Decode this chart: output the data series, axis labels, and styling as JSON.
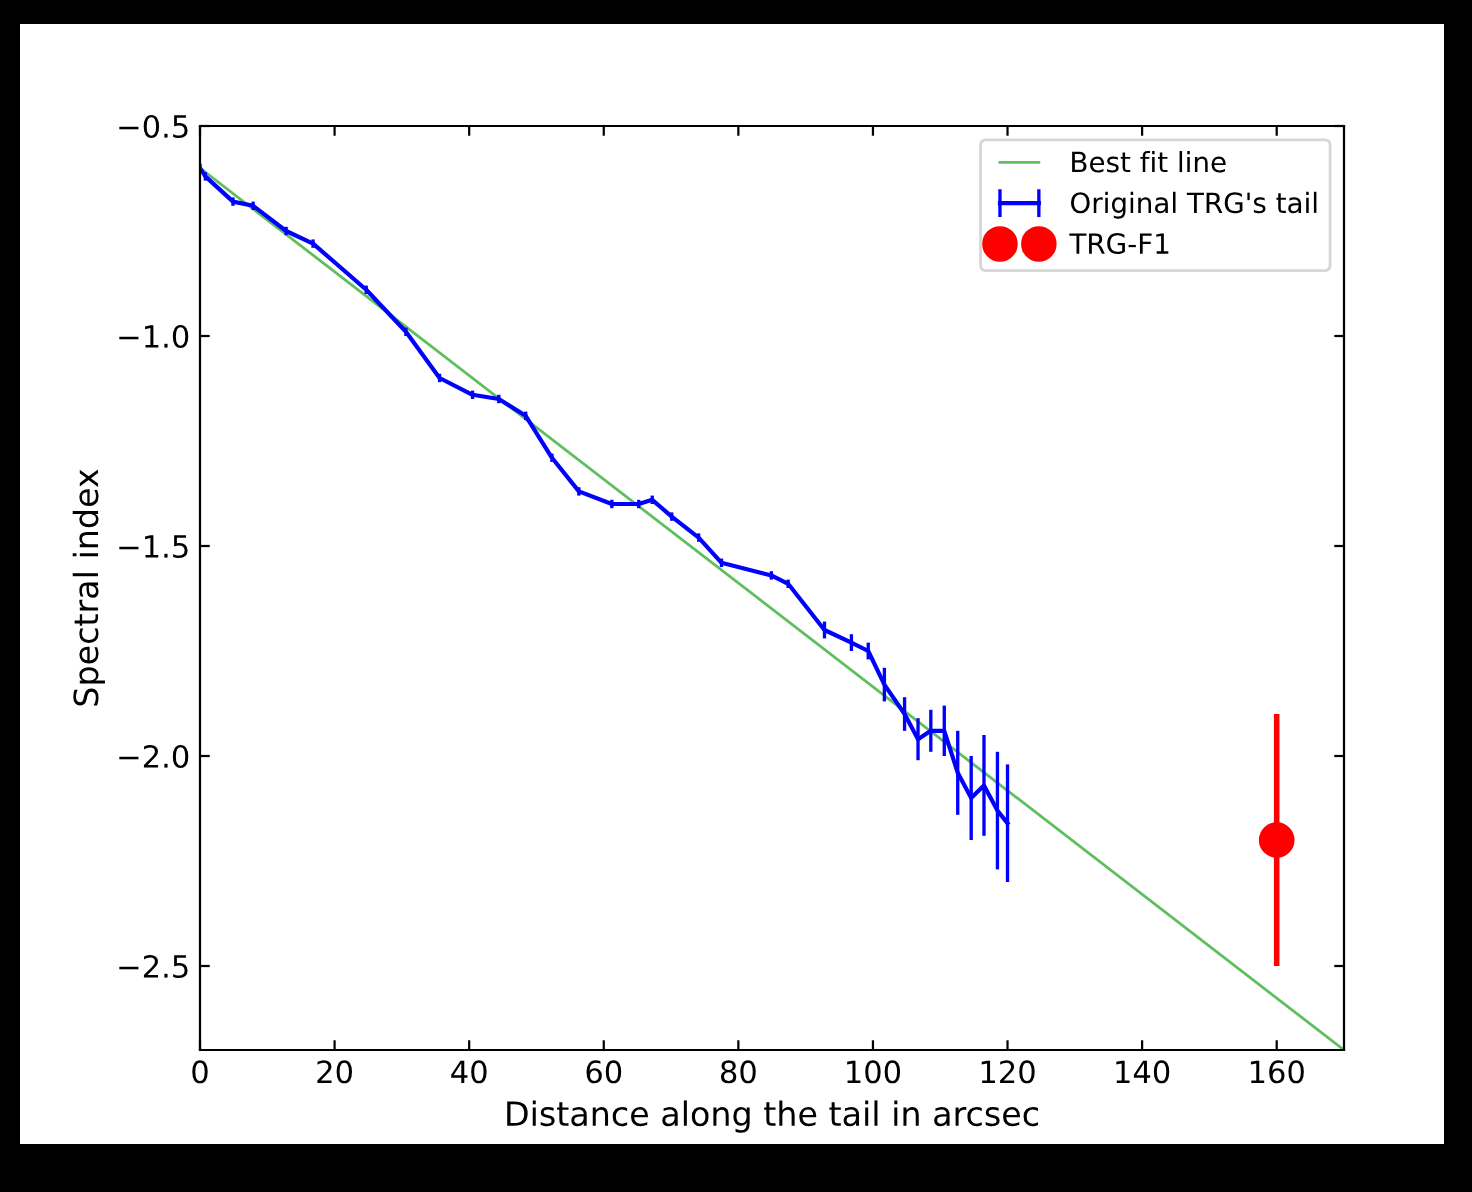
{
  "chart_data": {
    "type": "line",
    "xlabel": "Distance along the tail in arcsec",
    "ylabel": "Spectral index",
    "xlim": [
      0,
      170
    ],
    "ylim": [
      -2.7,
      -0.5
    ],
    "xticks": [
      0,
      20,
      40,
      60,
      80,
      100,
      120,
      140,
      160
    ],
    "yticks": [
      {
        "value": -2.5,
        "label": "−2.5"
      },
      {
        "value": -2.0,
        "label": "−2.0"
      },
      {
        "value": -1.5,
        "label": "−1.5"
      },
      {
        "value": -1.0,
        "label": "−1.0"
      },
      {
        "value": -0.5,
        "label": "−0.5"
      }
    ],
    "grid": false,
    "legend": "top right",
    "series": [
      {
        "name": "Best fit line",
        "color": "#5fbf5f",
        "marker": "none",
        "x": [
          0,
          170
        ],
        "values": [
          -0.6,
          -2.7
        ]
      },
      {
        "name": "Original TRG's tail",
        "color": "#0000ff",
        "marker": "none",
        "x": [
          0,
          0.8,
          4.9,
          7.9,
          12.8,
          16.8,
          24.7,
          30.6,
          35.6,
          40.5,
          44.4,
          48.4,
          52.3,
          56.3,
          61.2,
          65.2,
          67.2,
          70.1,
          74.1,
          77.5,
          84.9,
          87.4,
          92.8,
          96.8,
          99.3,
          101.7,
          104.7,
          106.7,
          108.6,
          110.6,
          112.6,
          114.6,
          116.5,
          118.5,
          120
        ],
        "values": [
          -0.6,
          -0.62,
          -0.68,
          -0.69,
          -0.75,
          -0.78,
          -0.89,
          -0.99,
          -1.1,
          -1.14,
          -1.15,
          -1.19,
          -1.29,
          -1.37,
          -1.4,
          -1.4,
          -1.39,
          -1.43,
          -1.48,
          -1.54,
          -1.57,
          -1.59,
          -1.7,
          -1.73,
          -1.75,
          -1.83,
          -1.9,
          -1.96,
          -1.94,
          -1.94,
          -2.04,
          -2.1,
          -2.07,
          -2.13,
          -2.16
        ],
        "errors": [
          0.01,
          0.01,
          0.01,
          0.01,
          0.01,
          0.01,
          0.01,
          0.01,
          0.01,
          0.01,
          0.01,
          0.01,
          0.01,
          0.01,
          0.01,
          0.01,
          0.01,
          0.01,
          0.01,
          0.01,
          0.01,
          0.01,
          0.02,
          0.02,
          0.02,
          0.04,
          0.04,
          0.05,
          0.05,
          0.06,
          0.1,
          0.1,
          0.12,
          0.14,
          0.14
        ]
      },
      {
        "name": "TRG-F1",
        "type": "scatter",
        "color": "#ff0000",
        "marker": "circle",
        "x": [
          160
        ],
        "values": [
          -2.2
        ],
        "errors": [
          0.3
        ]
      }
    ]
  }
}
